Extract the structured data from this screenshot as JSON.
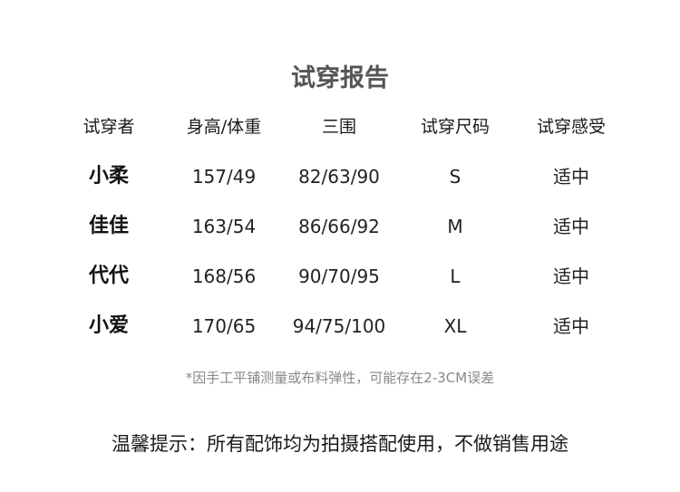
{
  "title": "试穿报告",
  "table": {
    "headers": [
      "试穿者",
      "身高/体重",
      "三围",
      "试穿尺码",
      "试穿感受"
    ],
    "rows": [
      [
        "小柔",
        "157/49",
        "82/63/90",
        "S",
        "适中"
      ],
      [
        "佳佳",
        "163/54",
        "86/66/92",
        "M",
        "适中"
      ],
      [
        "代代",
        "168/56",
        "90/70/95",
        "L",
        "适中"
      ],
      [
        "小爱",
        "170/65",
        "94/75/100",
        "XL",
        "适中"
      ]
    ]
  },
  "note": "*因手工平铺测量或布料弹性，可能存在2-3CM误差",
  "tip": "温馨提示：所有配饰均为拍摄搭配使用，不做销售用途"
}
